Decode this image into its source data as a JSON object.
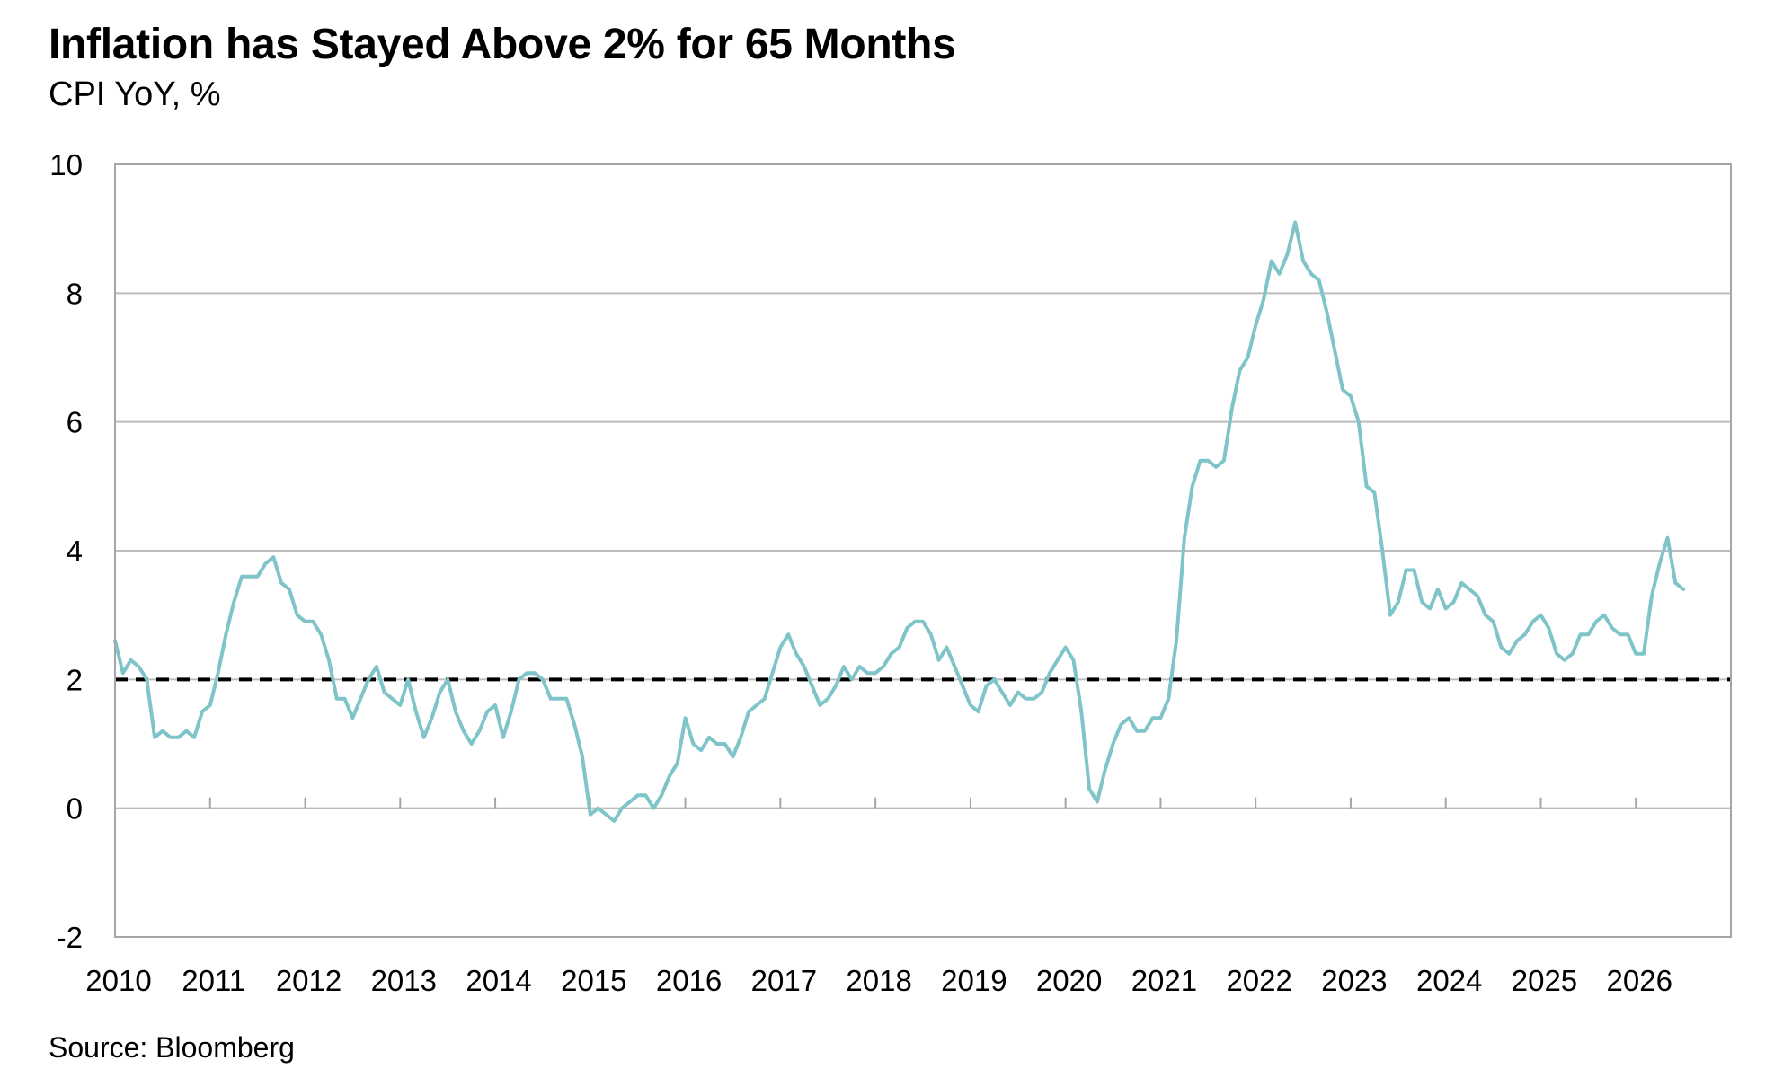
{
  "header": {
    "title": "Inflation has Stayed Above 2% for 65 Months",
    "subtitle": "CPI YoY, %"
  },
  "footer": {
    "source": "Source: Bloomberg"
  },
  "colors": {
    "series": "#7ec4c8",
    "reference_line": "#000000",
    "grid": "#bdbdbd",
    "axis": "#a6a6a6"
  },
  "chart_data": {
    "type": "line",
    "title": "Inflation has Stayed Above 2% for 65 Months",
    "subtitle": "CPI YoY, %",
    "ylim": [
      -2,
      10
    ],
    "yticks": [
      "-2",
      "0",
      "2",
      "4",
      "6",
      "8",
      "10"
    ],
    "xlim": [
      "2010-01",
      "2027-01"
    ],
    "xticks": [
      "2010",
      "2011",
      "2012",
      "2013",
      "2014",
      "2015",
      "2016",
      "2017",
      "2018",
      "2019",
      "2020",
      "2021",
      "2022",
      "2023",
      "2024",
      "2025",
      "2026"
    ],
    "grid": "horizontal",
    "reference_line": {
      "y": 2,
      "style": "dashed"
    },
    "x_start": "2010-01",
    "frequency": "monthly",
    "series": [
      {
        "values": [
          2.6,
          2.1,
          2.3,
          2.2,
          2.0,
          1.1,
          1.2,
          1.1,
          1.1,
          1.2,
          1.1,
          1.5,
          1.6,
          2.1,
          2.7,
          3.2,
          3.6,
          3.6,
          3.6,
          3.8,
          3.9,
          3.5,
          3.4,
          3.0,
          2.9,
          2.9,
          2.7,
          2.3,
          1.7,
          1.7,
          1.4,
          1.7,
          2.0,
          2.2,
          1.8,
          1.7,
          1.6,
          2.0,
          1.5,
          1.1,
          1.4,
          1.8,
          2.0,
          1.5,
          1.2,
          1.0,
          1.2,
          1.5,
          1.6,
          1.1,
          1.5,
          2.0,
          2.1,
          2.1,
          2.0,
          1.7,
          1.7,
          1.7,
          1.3,
          0.8,
          -0.1,
          0.0,
          -0.1,
          -0.2,
          0.0,
          0.1,
          0.2,
          0.2,
          0.0,
          0.2,
          0.5,
          0.7,
          1.4,
          1.0,
          0.9,
          1.1,
          1.0,
          1.0,
          0.8,
          1.1,
          1.5,
          1.6,
          1.7,
          2.1,
          2.5,
          2.7,
          2.4,
          2.2,
          1.9,
          1.6,
          1.7,
          1.9,
          2.2,
          2.0,
          2.2,
          2.1,
          2.1,
          2.2,
          2.4,
          2.5,
          2.8,
          2.9,
          2.9,
          2.7,
          2.3,
          2.5,
          2.2,
          1.9,
          1.6,
          1.5,
          1.9,
          2.0,
          1.8,
          1.6,
          1.8,
          1.7,
          1.7,
          1.8,
          2.1,
          2.3,
          2.5,
          2.3,
          1.5,
          0.3,
          0.1,
          0.6,
          1.0,
          1.3,
          1.4,
          1.2,
          1.2,
          1.4,
          1.4,
          1.7,
          2.6,
          4.2,
          5.0,
          5.4,
          5.4,
          5.3,
          5.4,
          6.2,
          6.8,
          7.0,
          7.5,
          7.9,
          8.5,
          8.3,
          8.6,
          9.1,
          8.5,
          8.3,
          8.2,
          7.7,
          7.1,
          6.5,
          6.4,
          6.0,
          5.0,
          4.9,
          4.0,
          3.0,
          3.2,
          3.7,
          3.7,
          3.2,
          3.1,
          3.4,
          3.1,
          3.2,
          3.5,
          3.4,
          3.3,
          3.0,
          2.9,
          2.5,
          2.4,
          2.6,
          2.7,
          2.9,
          3.0,
          2.8,
          2.4,
          2.3,
          2.4,
          2.7,
          2.7,
          2.9,
          3.0,
          2.8,
          2.7,
          2.7,
          2.4,
          2.4,
          3.3,
          3.8,
          4.2,
          3.5,
          3.4
        ]
      }
    ]
  }
}
